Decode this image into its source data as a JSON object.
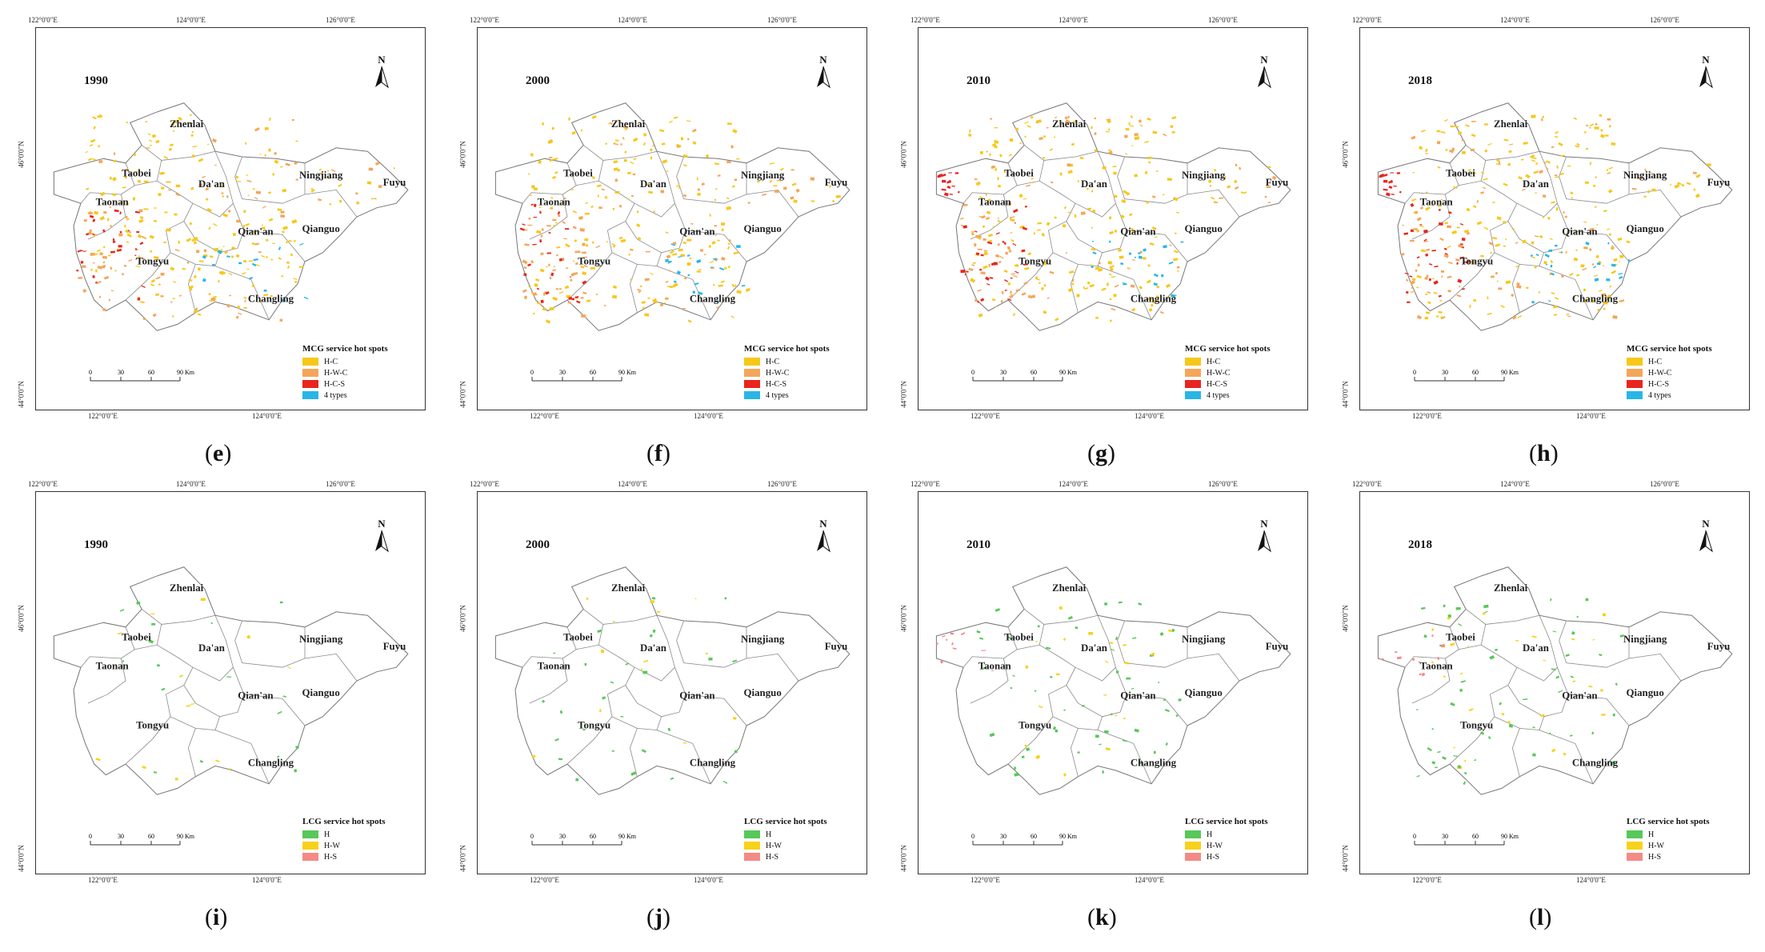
{
  "ticks": {
    "top": [
      "122°0'0\"E",
      "124°0'0\"E",
      "126°0'0\"E"
    ],
    "bottom": [
      "122°0'0\"E",
      "124°0'0\"E"
    ],
    "left": [
      "46°0'0\"N",
      "44°0'0\"N"
    ],
    "right": [
      "46°0'0\"N",
      "44°0'0\"N"
    ]
  },
  "north_label": "N",
  "counties": [
    "Zhenlai",
    "Taobei",
    "Da'an",
    "Ningjiang",
    "Fuyu",
    "Taonan",
    "Qian'an",
    "Qianguo",
    "Tongyu",
    "Changling"
  ],
  "scalebar": {
    "labels": [
      "0",
      "30",
      "60",
      "90 Km"
    ]
  },
  "legends": {
    "mcg": {
      "title": "MCG service hot spots",
      "items": [
        {
          "label": "H-C",
          "color": "#f7c71a"
        },
        {
          "label": "H-W-C",
          "color": "#f4a65a"
        },
        {
          "label": "H-C-S",
          "color": "#e8251e"
        },
        {
          "label": "4 types",
          "color": "#29b6e6"
        }
      ]
    },
    "lcg": {
      "title": "LCG service hot spots",
      "items": [
        {
          "label": "H",
          "color": "#57c85a"
        },
        {
          "label": "H-W",
          "color": "#f7d21a"
        },
        {
          "label": "H-S",
          "color": "#f48a86"
        }
      ]
    }
  },
  "panels": [
    {
      "year": "1990",
      "caption": "e"
    },
    {
      "year": "2000",
      "caption": "f"
    },
    {
      "year": "2010",
      "caption": "g"
    },
    {
      "year": "2018",
      "caption": "h"
    },
    {
      "year": "1990",
      "caption": "i"
    },
    {
      "year": "2000",
      "caption": "j"
    },
    {
      "year": "2010",
      "caption": "k"
    },
    {
      "year": "2018",
      "caption": "l"
    }
  ]
}
